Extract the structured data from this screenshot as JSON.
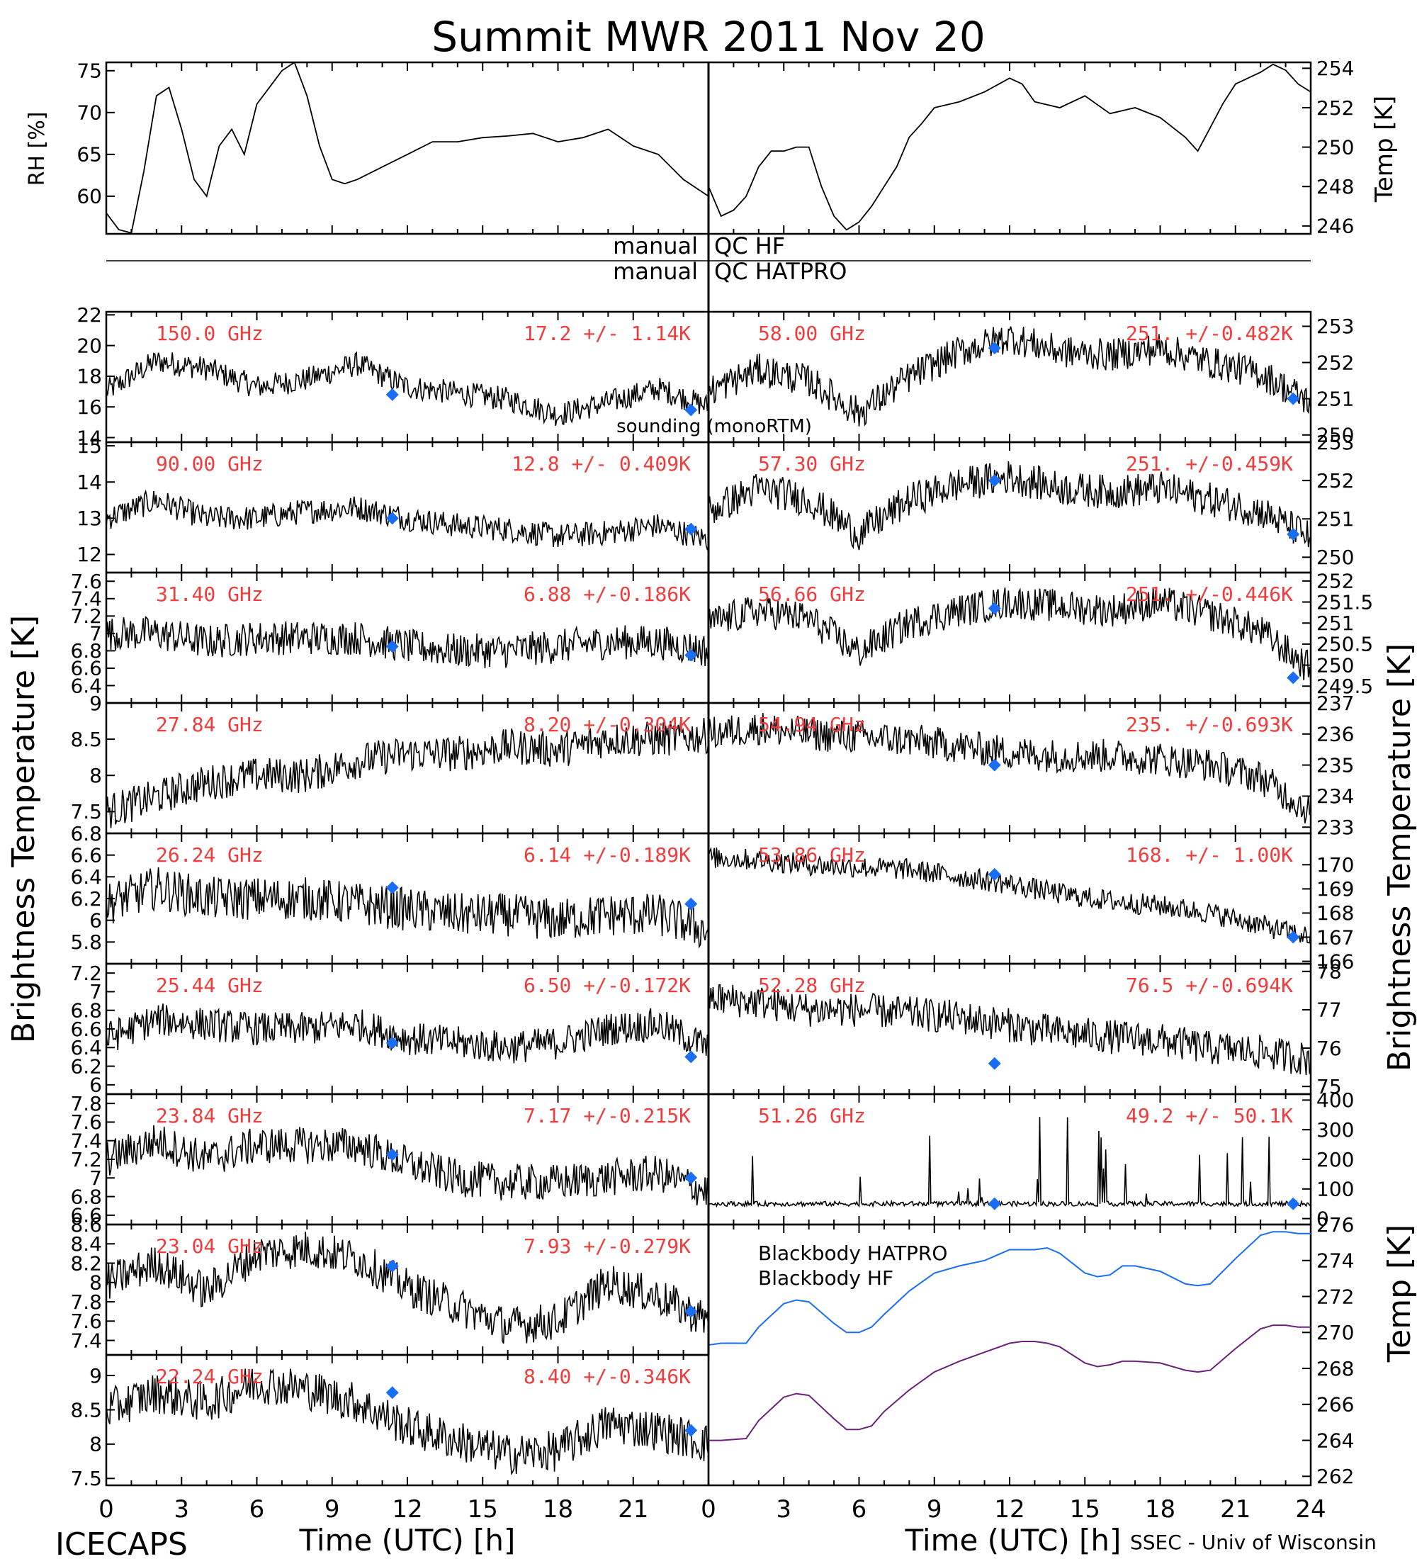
{
  "title": "Summit MWR 2011 Nov 20",
  "footer": {
    "left": "ICECAPS",
    "right": "SSEC - Univ of Wisconsin",
    "xlabel_left": "Time (UTC) [h]",
    "xlabel_right": "Time (UTC) [h]"
  },
  "qc": {
    "hf_left": "manual",
    "hf_right": "QC HF",
    "hatpro_left": "manual",
    "hatpro_right": "QC HATPRO"
  },
  "ylabels": {
    "rh": "RH [%]",
    "temp_top": "Temp [K]",
    "tb_left": "Brightness Temperature [K]",
    "tb_right": "Brightness Temperature [K]",
    "temp_bottom": "Temp [K]"
  },
  "colors": {
    "trace": "#000000",
    "annotation": "#f03c3c",
    "sounding": "#1a6ef5",
    "bb_hatpro": "#1a6ef5",
    "bb_hf": "#6b2079"
  },
  "chart_data": [
    {
      "type": "line",
      "id": "rh",
      "ylabel": "RH [%]",
      "xlim": [
        0,
        24
      ],
      "ylim": [
        55.5,
        76
      ],
      "yticks": [
        60,
        65,
        70,
        75
      ],
      "x": [
        0,
        0.5,
        1,
        1.5,
        2,
        2.5,
        3,
        3.5,
        4,
        4.5,
        5,
        5.5,
        6,
        6.5,
        7,
        7.5,
        8,
        8.5,
        9,
        9.5,
        10,
        11,
        12,
        13,
        14,
        15,
        16,
        17,
        18,
        19,
        20,
        21,
        22,
        23,
        24
      ],
      "values": [
        58,
        56,
        55.6,
        63,
        72,
        73,
        68,
        62,
        60,
        66,
        68,
        65,
        71,
        73,
        75,
        76,
        72,
        66,
        62,
        61.5,
        62,
        63.5,
        65,
        66.5,
        66.5,
        67,
        67.2,
        67.5,
        66.5,
        67,
        68,
        66,
        65,
        62,
        60
      ]
    },
    {
      "type": "line",
      "id": "temp_surface",
      "ylabel": "Temp [K]",
      "xlim": [
        0,
        24
      ],
      "ylim": [
        245.6,
        254.3
      ],
      "yticks": [
        246,
        248,
        250,
        252,
        254
      ],
      "x": [
        0,
        0.5,
        1,
        1.5,
        2,
        2.5,
        3,
        3.5,
        4,
        4.5,
        5,
        5.5,
        6,
        6.5,
        7,
        7.5,
        8,
        8.5,
        9,
        10,
        11,
        12,
        12.5,
        13,
        14,
        15,
        16,
        17,
        18,
        19,
        19.5,
        20,
        20.5,
        21,
        22,
        22.5,
        23,
        23.5,
        24
      ],
      "values": [
        248,
        246.5,
        246.8,
        247.5,
        249,
        249.8,
        249.8,
        250,
        250,
        248,
        246.5,
        245.8,
        246.2,
        247,
        248,
        249,
        250.5,
        251.2,
        252,
        252.3,
        252.8,
        253.5,
        253.2,
        252.3,
        252,
        252.6,
        251.7,
        252,
        251.5,
        250.5,
        249.8,
        251,
        252.2,
        253.2,
        253.8,
        254.2,
        253.9,
        253.2,
        252.8
      ]
    },
    {
      "type": "scatter",
      "side": "left",
      "freq": "150.0 GHz",
      "stat": "17.2 +/-  1.14K",
      "ylim": [
        13.7,
        22.2
      ],
      "yticks": [
        14,
        16,
        18,
        20,
        22
      ],
      "noise": 0.8,
      "hours": [
        0,
        2,
        4,
        6,
        8,
        10,
        12,
        14,
        16,
        18,
        20,
        22,
        24
      ],
      "values": [
        17,
        19,
        18.5,
        17.3,
        17.8,
        18.8,
        17.3,
        16.9,
        16.5,
        15.5,
        16.3,
        17.2,
        16
      ],
      "sounding": {
        "x": [
          11.4,
          23.3
        ],
        "values": [
          16.8,
          15.8
        ]
      },
      "extra_label": "sounding (monoRTM)"
    },
    {
      "type": "scatter",
      "side": "left",
      "freq": "90.00 GHz",
      "stat": "12.8 +/- 0.409K",
      "ylim": [
        11.5,
        15.1
      ],
      "yticks": [
        12,
        13,
        14,
        15
      ],
      "noise": 0.35,
      "hours": [
        0,
        2,
        4,
        6,
        8,
        10,
        12,
        14,
        16,
        18,
        20,
        22,
        24
      ],
      "values": [
        13,
        13.5,
        13,
        13,
        13.2,
        13.3,
        13,
        12.8,
        12.7,
        12.5,
        12.6,
        12.8,
        12.4
      ],
      "sounding": {
        "x": [
          11.4,
          23.3
        ],
        "values": [
          13,
          12.7
        ]
      }
    },
    {
      "type": "scatter",
      "side": "left",
      "freq": "31.40 GHz",
      "stat": "6.88 +/-0.186K",
      "ylim": [
        6.2,
        7.7
      ],
      "yticks": [
        6.4,
        6.6,
        6.8,
        7.0,
        7.2,
        7.4,
        7.6
      ],
      "noise": 0.2,
      "hours": [
        0,
        2,
        4,
        6,
        8,
        10,
        12,
        14,
        16,
        18,
        20,
        22,
        24
      ],
      "values": [
        7.0,
        7.0,
        6.9,
        6.95,
        6.95,
        6.95,
        6.85,
        6.8,
        6.8,
        6.85,
        6.9,
        6.9,
        6.8
      ],
      "sounding": {
        "x": [
          11.4,
          23.3
        ],
        "values": [
          6.85,
          6.75
        ]
      }
    },
    {
      "type": "scatter",
      "side": "left",
      "freq": "27.84 GHz",
      "stat": "8.20 +/-0.304K",
      "ylim": [
        7.2,
        9.0
      ],
      "yticks": [
        7.5,
        8.0,
        8.5,
        9.0
      ],
      "noise": 0.25,
      "hours": [
        0,
        2,
        4,
        6,
        8,
        10,
        12,
        14,
        16,
        18,
        20,
        22,
        24
      ],
      "values": [
        7.5,
        7.7,
        7.9,
        8.0,
        8.0,
        8.2,
        8.3,
        8.3,
        8.4,
        8.35,
        8.5,
        8.5,
        8.55
      ],
      "sounding": {
        "x": [],
        "values": []
      }
    },
    {
      "type": "scatter",
      "side": "left",
      "freq": "26.24 GHz",
      "stat": "6.14 +/-0.189K",
      "ylim": [
        5.6,
        6.8
      ],
      "yticks": [
        5.8,
        6.0,
        6.2,
        6.4,
        6.6,
        6.8
      ],
      "noise": 0.2,
      "hours": [
        0,
        2,
        4,
        6,
        8,
        10,
        12,
        14,
        16,
        18,
        20,
        22,
        24
      ],
      "values": [
        6.15,
        6.3,
        6.2,
        6.2,
        6.2,
        6.15,
        6.1,
        6.05,
        6.05,
        6.0,
        6.05,
        6.05,
        5.9
      ],
      "sounding": {
        "x": [
          11.4,
          23.3
        ],
        "values": [
          6.3,
          6.15
        ]
      }
    },
    {
      "type": "scatter",
      "side": "left",
      "freq": "25.44 GHz",
      "stat": "6.50 +/-0.172K",
      "ylim": [
        5.9,
        7.3
      ],
      "yticks": [
        6.0,
        6.2,
        6.4,
        6.6,
        6.8,
        7.0,
        7.2
      ],
      "noise": 0.18,
      "hours": [
        0,
        2,
        4,
        6,
        8,
        10,
        12,
        14,
        16,
        18,
        20,
        22,
        24
      ],
      "values": [
        6.5,
        6.7,
        6.65,
        6.6,
        6.6,
        6.65,
        6.5,
        6.45,
        6.4,
        6.45,
        6.6,
        6.65,
        6.4
      ],
      "sounding": {
        "x": [
          11.4,
          23.3
        ],
        "values": [
          6.45,
          6.3
        ]
      }
    },
    {
      "type": "scatter",
      "side": "left",
      "freq": "23.84 GHz",
      "stat": "7.17 +/-0.215K",
      "ylim": [
        6.5,
        7.9
      ],
      "yticks": [
        6.6,
        6.8,
        7.0,
        7.2,
        7.4,
        7.6,
        7.8
      ],
      "noise": 0.2,
      "hours": [
        0,
        2,
        4,
        6,
        8,
        10,
        12,
        14,
        16,
        18,
        20,
        22,
        24
      ],
      "values": [
        7.2,
        7.4,
        7.2,
        7.35,
        7.35,
        7.35,
        7.15,
        7.0,
        6.95,
        6.95,
        7.0,
        7.05,
        6.85
      ],
      "sounding": {
        "x": [
          11.4,
          23.3
        ],
        "values": [
          7.25,
          7.0
        ]
      }
    },
    {
      "type": "scatter",
      "side": "left",
      "freq": "23.04 GHz",
      "stat": "7.93 +/-0.279K",
      "ylim": [
        7.25,
        8.6
      ],
      "yticks": [
        7.4,
        7.6,
        7.8,
        8.0,
        8.2,
        8.4,
        8.6
      ],
      "noise": 0.2,
      "hours": [
        0,
        2,
        4,
        6,
        8,
        10,
        12,
        14,
        16,
        18,
        20,
        22,
        24
      ],
      "values": [
        8.0,
        8.2,
        7.9,
        8.3,
        8.35,
        8.25,
        7.95,
        7.75,
        7.55,
        7.6,
        8.0,
        7.85,
        7.6
      ],
      "sounding": {
        "x": [
          11.4,
          23.3
        ],
        "values": [
          8.17,
          7.7
        ]
      }
    },
    {
      "type": "scatter",
      "side": "left",
      "freq": "22.24 GHz",
      "stat": "8.40 +/-0.346K",
      "ylim": [
        7.4,
        9.3
      ],
      "yticks": [
        7.5,
        8.0,
        8.5,
        9.0
      ],
      "noise": 0.3,
      "hours": [
        0,
        2,
        4,
        6,
        8,
        10,
        12,
        14,
        16,
        18,
        20,
        22,
        24
      ],
      "values": [
        8.5,
        8.75,
        8.6,
        8.9,
        8.8,
        8.6,
        8.25,
        8.05,
        7.85,
        7.9,
        8.3,
        8.2,
        8.0
      ],
      "sounding": {
        "x": [
          11.4,
          23.3
        ],
        "values": [
          8.75,
          8.2
        ]
      }
    },
    {
      "type": "scatter",
      "side": "right",
      "freq": "58.00 GHz",
      "stat": "251. +/-0.482K",
      "ylim": [
        249.8,
        253.4
      ],
      "yticks": [
        250,
        251,
        252,
        253
      ],
      "noise": 0.45,
      "hours": [
        0,
        2,
        4,
        6,
        8,
        10,
        12,
        14,
        16,
        18,
        20,
        22,
        24
      ],
      "values": [
        251.2,
        251.8,
        251.5,
        250.6,
        251.6,
        252.3,
        252.7,
        252.3,
        252.2,
        252.4,
        252.0,
        251.7,
        250.9
      ],
      "sounding": {
        "x": [
          11.4,
          23.3
        ],
        "values": [
          252.4,
          251
        ]
      }
    },
    {
      "type": "scatter",
      "side": "right",
      "freq": "57.30 GHz",
      "stat": "251. +/-0.459K",
      "ylim": [
        249.6,
        253.0
      ],
      "yticks": [
        250,
        251,
        252,
        253
      ],
      "noise": 0.45,
      "hours": [
        0,
        2,
        4,
        6,
        8,
        10,
        12,
        14,
        16,
        18,
        20,
        22,
        24
      ],
      "values": [
        251.2,
        251.8,
        251.5,
        250.6,
        251.5,
        251.9,
        252.1,
        251.8,
        251.7,
        251.8,
        251.5,
        251.2,
        250.5
      ],
      "sounding": {
        "x": [
          11.4,
          23.3
        ],
        "values": [
          252,
          250.6
        ]
      }
    },
    {
      "type": "scatter",
      "side": "right",
      "freq": "56.66 GHz",
      "stat": "251. +/-0.446K",
      "ylim": [
        249.1,
        252.2
      ],
      "yticks": [
        249.5,
        250.0,
        250.5,
        251.0,
        251.5,
        252.0
      ],
      "noise": 0.4,
      "hours": [
        0,
        2,
        4,
        6,
        8,
        10,
        12,
        14,
        16,
        18,
        20,
        22,
        24
      ],
      "values": [
        251.0,
        251.3,
        251.1,
        250.3,
        251.0,
        251.3,
        251.5,
        251.4,
        251.3,
        251.5,
        251.2,
        250.8,
        249.9
      ],
      "sounding": {
        "x": [
          11.4,
          23.3
        ],
        "values": [
          251.35,
          249.7
        ]
      }
    },
    {
      "type": "scatter",
      "side": "right",
      "freq": "54.94 GHz",
      "stat": "235. +/-0.693K",
      "ylim": [
        232.8,
        237.0
      ],
      "yticks": [
        233,
        234,
        235,
        236,
        237
      ],
      "noise": 0.55,
      "hours": [
        0,
        2,
        4,
        6,
        8,
        10,
        12,
        14,
        16,
        18,
        20,
        22,
        24
      ],
      "values": [
        236,
        236.2,
        236.0,
        235.9,
        235.8,
        235.6,
        235.4,
        235.3,
        235.3,
        235.2,
        235.0,
        234.6,
        233.5
      ],
      "sounding": {
        "x": [
          11.4
        ],
        "values": [
          235
        ]
      }
    },
    {
      "type": "scatter",
      "side": "right",
      "freq": "53.86 GHz",
      "stat": "168. +/- 1.00K",
      "ylim": [
        165.9,
        171.3
      ],
      "yticks": [
        166,
        167,
        168,
        169,
        170
      ],
      "noise": 0.45,
      "hours": [
        0,
        2,
        4,
        6,
        8,
        10,
        12,
        14,
        16,
        18,
        20,
        22,
        24
      ],
      "values": [
        170.3,
        170.2,
        170,
        169.9,
        169.8,
        169.5,
        169.2,
        168.8,
        168.5,
        168.3,
        168,
        167.5,
        167
      ],
      "sounding": {
        "x": [
          11.4,
          23.3
        ],
        "values": [
          169.6,
          167
        ]
      }
    },
    {
      "type": "scatter",
      "side": "right",
      "freq": "52.28 GHz",
      "stat": "76.5 +/-0.694K",
      "ylim": [
        74.8,
        78.2
      ],
      "yticks": [
        75,
        76,
        77,
        78
      ],
      "noise": 0.45,
      "hours": [
        0,
        2,
        4,
        6,
        8,
        10,
        12,
        14,
        16,
        18,
        20,
        22,
        24
      ],
      "values": [
        77.3,
        77.2,
        77.0,
        77.0,
        76.9,
        76.8,
        76.6,
        76.4,
        76.3,
        76.2,
        76.0,
        75.9,
        75.7
      ],
      "sounding": {
        "x": [
          11.4
        ],
        "values": [
          75.6
        ]
      }
    },
    {
      "type": "scatter",
      "side": "right",
      "freq": "51.26 GHz",
      "stat": "49.2 +/- 50.1K",
      "ylim": [
        -20,
        420
      ],
      "yticks": [
        0,
        100,
        200,
        300,
        400
      ],
      "noise": 8,
      "hours": [
        0,
        24
      ],
      "values": [
        50,
        50
      ],
      "sounding": {
        "x": [
          11.4,
          23.3
        ],
        "values": [
          50,
          50
        ]
      }
    },
    {
      "type": "line",
      "id": "blackbody",
      "ylabel": "Temp [K]",
      "xlim": [
        0,
        24
      ],
      "ylim": [
        261.5,
        276
      ],
      "yticks": [
        262,
        264,
        266,
        268,
        270,
        272,
        274,
        276
      ],
      "x": [
        0,
        0.5,
        1.5,
        2,
        3,
        3.5,
        4,
        5,
        5.5,
        6,
        6.5,
        7,
        8,
        9,
        10,
        11,
        12,
        12.5,
        13,
        13.5,
        14,
        15,
        15.5,
        16,
        16.5,
        17,
        18,
        19,
        19.5,
        20,
        21,
        22,
        22.5,
        23,
        23.5,
        24
      ],
      "series": [
        {
          "name": "Blackbody HATPRO",
          "values": [
            269.3,
            269.4,
            269.4,
            270.3,
            271.6,
            271.8,
            271.7,
            270.5,
            270,
            270,
            270.3,
            271,
            272.3,
            273.3,
            273.7,
            274,
            274.6,
            274.6,
            274.6,
            274.7,
            274.4,
            273.3,
            273.1,
            273.2,
            273.7,
            273.7,
            273.4,
            272.7,
            272.6,
            272.7,
            274.1,
            275.4,
            275.6,
            275.6,
            275.5,
            275.5
          ]
        },
        {
          "name": "Blackbody HF",
          "values": [
            264,
            264,
            264.1,
            265.1,
            266.4,
            266.6,
            266.5,
            265.2,
            264.6,
            264.6,
            264.8,
            265.6,
            266.8,
            267.8,
            268.4,
            268.9,
            269.4,
            269.5,
            269.5,
            269.4,
            269.2,
            268.3,
            268.1,
            268.2,
            268.4,
            268.4,
            268.3,
            267.9,
            267.8,
            267.9,
            269.1,
            270.2,
            270.4,
            270.4,
            270.3,
            270.3
          ]
        }
      ]
    }
  ]
}
